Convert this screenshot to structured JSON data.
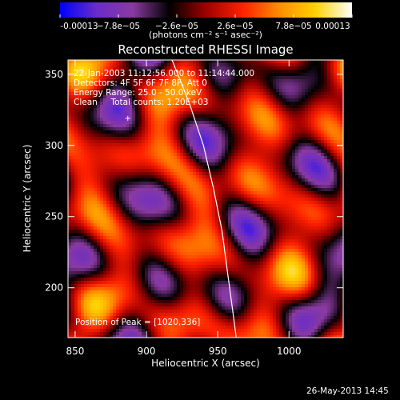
{
  "chart_data": {
    "type": "heatmap",
    "title": "Reconstructed RHESSI Image",
    "xlabel": "Heliocentric X (arcsec)",
    "ylabel": "Heliocentric Y (arcsec)",
    "xlim": [
      845,
      1038
    ],
    "ylim": [
      165,
      360
    ],
    "x_ticks": [
      850,
      900,
      950,
      1000
    ],
    "y_ticks": [
      200,
      250,
      300,
      350
    ],
    "colorbar": {
      "min": -0.00013,
      "max": 0.00013,
      "ticks": [
        -0.00013,
        -7.8e-05,
        -2.6e-05,
        2.6e-05,
        7.8e-05,
        0.00013
      ],
      "tick_labels": [
        "-0.00013",
        "−7.8e−05",
        "−2.6e−05",
        "2.6e−05",
        "7.8e−05",
        "0.00013"
      ],
      "units_label": "(photons cm⁻² s⁻¹ asec⁻²)",
      "colormap": [
        "#0000ff",
        "#6a2cc8",
        "#8a3aa0",
        "#000000",
        "#a00000",
        "#ff2000",
        "#ff8c00",
        "#ffd200",
        "#ffffff"
      ]
    },
    "annotations": {
      "time_range": "22-Jan-2003 11:12:56.000 to 11:14:44.000",
      "detectors": "Detectors: 4F 5F 6F 7F 8F, Att 0",
      "energy_range": "Energy Range: 25.0 - 50.0 keV",
      "method": "Clean     Total counts: 1.20E+03",
      "peak": "Position of Peak = [1020,336]"
    },
    "limb_curve": [
      [
        918,
        360
      ],
      [
        930,
        330
      ],
      [
        940,
        300
      ],
      [
        947,
        270
      ],
      [
        953,
        240
      ],
      [
        957,
        210
      ],
      [
        961,
        180
      ],
      [
        963,
        165
      ]
    ],
    "marker": [
      887,
      319
    ]
  },
  "footer": {
    "timestamp": "26-May-2013 14:45"
  }
}
